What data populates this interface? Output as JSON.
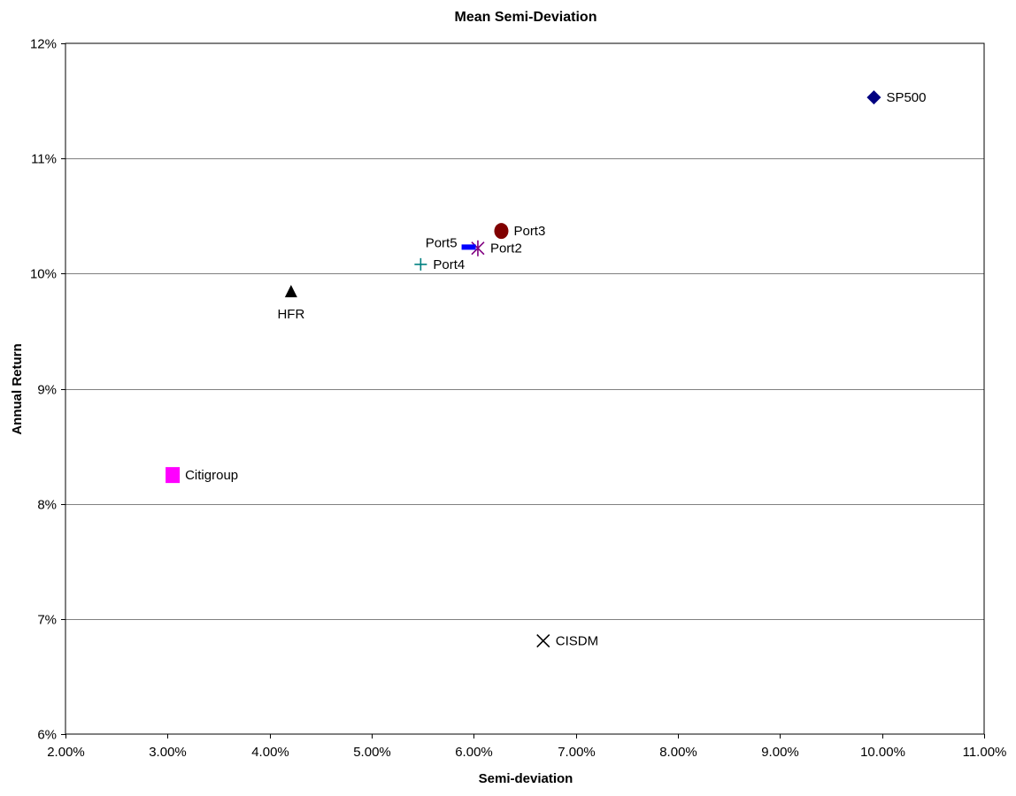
{
  "chart_data": {
    "type": "scatter",
    "title": "Mean Semi-Deviation",
    "xlabel": "Semi-deviation",
    "ylabel": "Annual Return",
    "xlim": [
      0.02,
      0.11
    ],
    "ylim": [
      0.06,
      0.12
    ],
    "x_ticks": [
      0.02,
      0.03,
      0.04,
      0.05,
      0.06,
      0.07,
      0.08,
      0.09,
      0.1,
      0.11
    ],
    "x_tick_labels": [
      "2.00%",
      "3.00%",
      "4.00%",
      "5.00%",
      "6.00%",
      "7.00%",
      "8.00%",
      "9.00%",
      "10.00%",
      "11.00%"
    ],
    "y_ticks": [
      0.06,
      0.07,
      0.08,
      0.09,
      0.1,
      0.11,
      0.12
    ],
    "y_tick_labels": [
      "6%",
      "7%",
      "8%",
      "9%",
      "10%",
      "11%",
      "12%"
    ],
    "grid": "horizontal",
    "legend": "none",
    "series": [
      {
        "name": "SP500",
        "x": 0.0992,
        "y": 0.1153,
        "marker": "diamond",
        "color": "#000080",
        "label_pos": "right"
      },
      {
        "name": "Port3",
        "x": 0.0627,
        "y": 0.1037,
        "marker": "circle",
        "color": "#800000",
        "label_pos": "right"
      },
      {
        "name": "Port2",
        "x": 0.0604,
        "y": 0.1022,
        "marker": "asterisk",
        "color": "#800080",
        "label_pos": "right"
      },
      {
        "name": "Port5",
        "x": 0.0595,
        "y": 0.1023,
        "marker": "dash",
        "color": "#0000ff",
        "label_pos": "left"
      },
      {
        "name": "Port4",
        "x": 0.0548,
        "y": 0.1008,
        "marker": "plus",
        "color": "#008080",
        "label_pos": "right"
      },
      {
        "name": "HFR",
        "x": 0.0421,
        "y": 0.0984,
        "marker": "triangle",
        "color": "#000000",
        "label_pos": "below"
      },
      {
        "name": "Citigroup",
        "x": 0.0305,
        "y": 0.0825,
        "marker": "square",
        "color": "#ff00ff",
        "label_pos": "right"
      },
      {
        "name": "CISDM",
        "x": 0.0668,
        "y": 0.0681,
        "marker": "x",
        "color": "#000000",
        "label_pos": "right"
      }
    ]
  }
}
